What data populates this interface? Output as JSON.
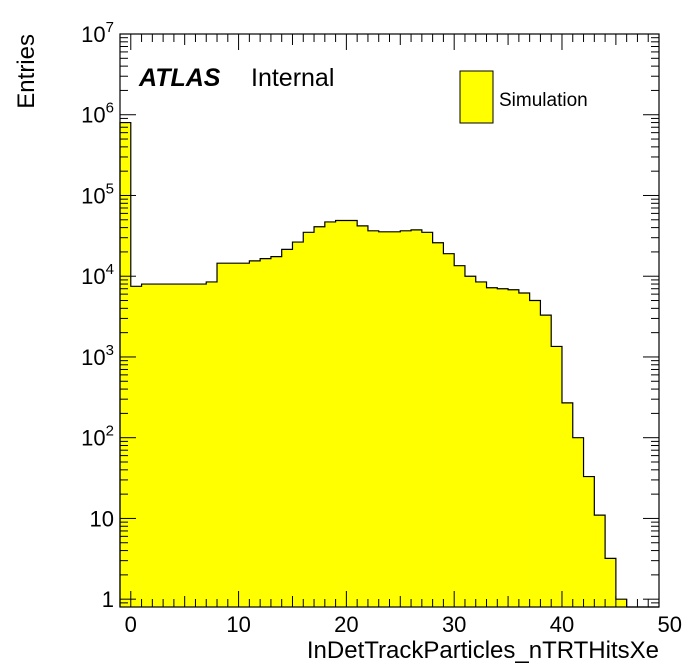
{
  "chart_data": {
    "type": "bar",
    "subtype": "histogram",
    "xlabel": "InDetTrackParticles_nTRTHitsXe",
    "ylabel": "Entries",
    "xlim": [
      -1,
      49
    ],
    "ylim": [
      0.8,
      10000000
    ],
    "yscale": "log",
    "grid": false,
    "legend_position": "top-right",
    "fill_color": "#ffff00",
    "line_color": "#000000",
    "x_ticks": [
      "0",
      "10",
      "20",
      "30",
      "40",
      "50"
    ],
    "atlas_label": {
      "bold": "ATLAS",
      "text": "Internal"
    },
    "series": [
      {
        "name": "Simulation",
        "bin_low_edges": [
          -1,
          0,
          1,
          2,
          3,
          4,
          5,
          6,
          7,
          8,
          9,
          10,
          11,
          12,
          13,
          14,
          15,
          16,
          17,
          18,
          19,
          20,
          21,
          22,
          23,
          24,
          25,
          26,
          27,
          28,
          29,
          30,
          31,
          32,
          33,
          34,
          35,
          36,
          37,
          38,
          39,
          40,
          41,
          42,
          43,
          44,
          45,
          46,
          47,
          48
        ],
        "bin_width": 1,
        "values": [
          800000,
          7500,
          8000,
          8000,
          8000,
          8000,
          8000,
          8000,
          8500,
          14500,
          14500,
          14500,
          15500,
          16500,
          17500,
          21500,
          26500,
          35000,
          41000,
          47000,
          49000,
          49000,
          42000,
          36500,
          35500,
          35500,
          36500,
          37500,
          35000,
          26000,
          19000,
          13500,
          10000,
          8500,
          7200,
          7000,
          6800,
          6200,
          5000,
          3300,
          1350,
          270,
          100,
          33,
          11,
          3.2,
          1,
          0,
          0,
          0
        ]
      }
    ]
  }
}
